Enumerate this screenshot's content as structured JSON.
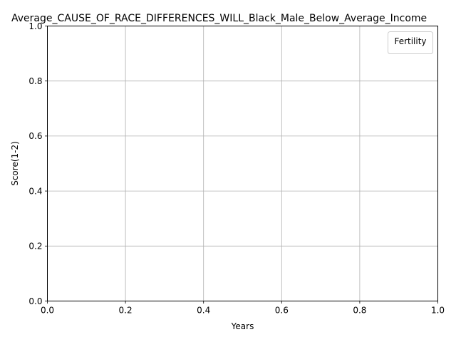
{
  "chart_data": {
    "type": "line",
    "title": "Average_CAUSE_OF_RACE_DIFFERENCES_WILL_Black_Male_Below_Average_Income",
    "xlabel": "Years",
    "ylabel": "Score(1-2)",
    "xlim": [
      0.0,
      1.0
    ],
    "ylim": [
      0.0,
      1.0
    ],
    "x_ticks": [
      "0.0",
      "0.2",
      "0.4",
      "0.6",
      "0.8",
      "1.0"
    ],
    "y_ticks": [
      "0.0",
      "0.2",
      "0.4",
      "0.6",
      "0.8",
      "1.0"
    ],
    "grid": true,
    "legend": {
      "title": "Fertility",
      "placement": "top-right",
      "entries": []
    },
    "series": []
  }
}
